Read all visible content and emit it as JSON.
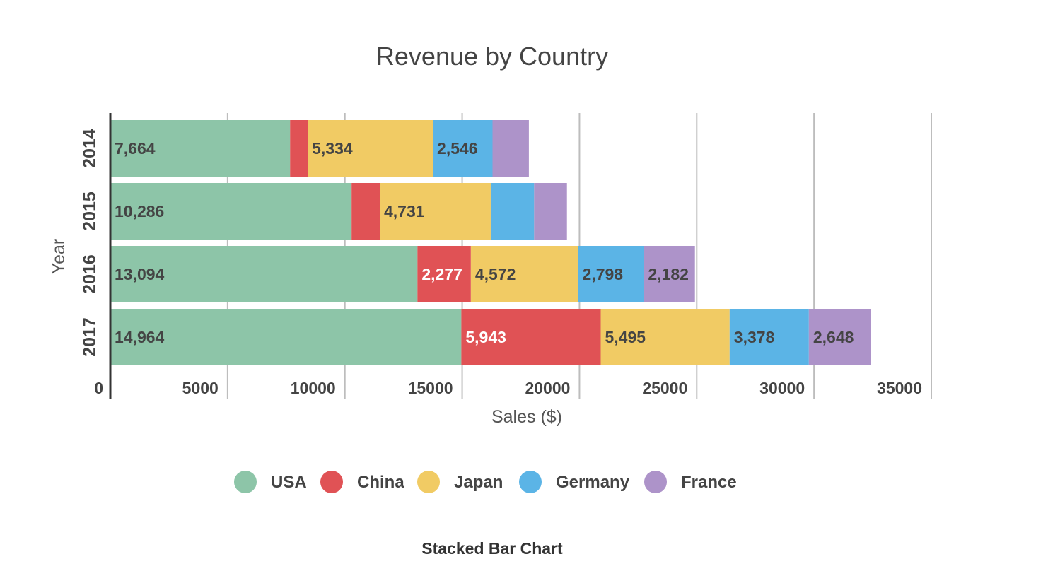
{
  "chart_data": {
    "type": "bar",
    "orientation": "horizontal",
    "stacked": true,
    "title": "Revenue by Country",
    "xlabel": "Sales ($)",
    "ylabel": "Year",
    "categories": [
      "2014",
      "2015",
      "2016",
      "2017"
    ],
    "xlim": [
      0,
      35000
    ],
    "xticks": [
      "0",
      "5000",
      "10000",
      "15000",
      "20000",
      "25000",
      "30000",
      "35000"
    ],
    "grid": true,
    "legend_position": "bottom",
    "series": [
      {
        "name": "USA",
        "color": "#8dc5a8",
        "values": [
          7664,
          10286,
          13094,
          14964
        ],
        "labels": [
          "7,664",
          "10,286",
          "13,094",
          "14,964"
        ],
        "label_color": "#444444"
      },
      {
        "name": "China",
        "color": "#e05255",
        "values": [
          750,
          1200,
          2277,
          5943
        ],
        "labels": [
          "",
          "",
          "2,277",
          "5,943"
        ],
        "label_color": "#ffffff"
      },
      {
        "name": "Japan",
        "color": "#f1cb64",
        "values": [
          5334,
          4731,
          4572,
          5495
        ],
        "labels": [
          "5,334",
          "4,731",
          "4,572",
          "5,495"
        ],
        "label_color": "#444444"
      },
      {
        "name": "Germany",
        "color": "#5bb4e6",
        "values": [
          2546,
          1850,
          2798,
          3378
        ],
        "labels": [
          "2,546",
          "",
          "2,798",
          "3,378"
        ],
        "label_color": "#444444"
      },
      {
        "name": "France",
        "color": "#ad93c9",
        "values": [
          1550,
          1400,
          2182,
          2648
        ],
        "labels": [
          "",
          "",
          "2,182",
          "2,648"
        ],
        "label_color": "#444444"
      }
    ]
  },
  "caption": "Stacked Bar Chart"
}
